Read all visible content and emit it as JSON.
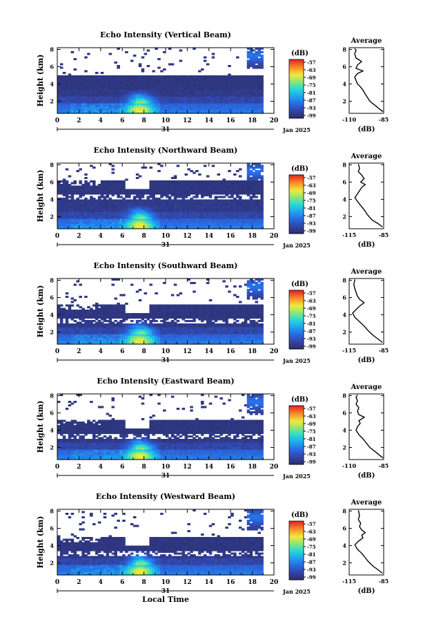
{
  "chart_data": [
    {
      "type": "heatmap",
      "title": "Echo Intensity (Vertical Beam)",
      "ylabel": "Height (km)",
      "xticks": [
        "0",
        "2",
        "4",
        "6",
        "8",
        "10",
        "12",
        "14",
        "16",
        "18",
        "20"
      ],
      "yticks": [
        "2",
        "4",
        "6",
        "8"
      ],
      "xlim": [
        0,
        20
      ],
      "ylim": [
        0.6,
        8.2
      ],
      "day_label": "31",
      "date_label": "Jan 2025",
      "colorbar": {
        "unit": "(dB)",
        "ticks": [
          "-57",
          "-63",
          "-69",
          "-75",
          "-81",
          "-87",
          "-93",
          "-99"
        ],
        "range": [
          -99,
          -57
        ]
      },
      "profile": {
        "title": "Average",
        "xlabel": "(dB)",
        "xticks": [
          "-110",
          "-85"
        ],
        "xlim": [
          -110,
          -85
        ],
        "yticks": [
          "2",
          "4",
          "6",
          "8"
        ],
        "points": [
          [
            -85.5,
            0.8
          ],
          [
            -88,
            1.1
          ],
          [
            -91,
            1.5
          ],
          [
            -95,
            2.0
          ],
          [
            -97,
            2.5
          ],
          [
            -99,
            3.0
          ],
          [
            -100,
            3.3
          ],
          [
            -102,
            3.7
          ],
          [
            -104,
            4.0
          ],
          [
            -105,
            4.4
          ],
          [
            -106,
            4.8
          ],
          [
            -104,
            5.2
          ],
          [
            -100,
            5.5
          ],
          [
            -105,
            5.8
          ],
          [
            -104,
            6.2
          ],
          [
            -101,
            6.6
          ],
          [
            -105,
            7.0
          ],
          [
            -106,
            7.5
          ],
          [
            -105,
            7.9
          ],
          [
            -106,
            8.1
          ]
        ]
      }
    },
    {
      "type": "heatmap",
      "title": "Echo Intensity (Northward Beam)",
      "ylabel": "Height (km)",
      "xticks": [
        "0",
        "2",
        "4",
        "6",
        "8",
        "10",
        "12",
        "14",
        "16",
        "18",
        "20"
      ],
      "yticks": [
        "2",
        "4",
        "6",
        "8"
      ],
      "xlim": [
        0,
        20
      ],
      "ylim": [
        0.6,
        8.2
      ],
      "day_label": "31",
      "date_label": "Jan 2025",
      "colorbar": {
        "unit": "(dB)",
        "ticks": [
          "-57",
          "-63",
          "-69",
          "-75",
          "-81",
          "-87",
          "-93",
          "-99"
        ],
        "range": [
          -99,
          -57
        ]
      },
      "profile": {
        "title": "Average",
        "xlabel": "(dB)",
        "xticks": [
          "-115",
          "-85"
        ],
        "xlim": [
          -115,
          -85
        ],
        "yticks": [
          "2",
          "4",
          "6",
          "8"
        ],
        "points": [
          [
            -86,
            0.8
          ],
          [
            -90,
            1.2
          ],
          [
            -95,
            1.6
          ],
          [
            -99,
            2.2
          ],
          [
            -102,
            2.8
          ],
          [
            -105,
            3.3
          ],
          [
            -108,
            3.8
          ],
          [
            -110,
            4.2
          ],
          [
            -108,
            4.6
          ],
          [
            -106,
            5.0
          ],
          [
            -104,
            5.4
          ],
          [
            -101,
            5.7
          ],
          [
            -105,
            6.0
          ],
          [
            -102,
            6.4
          ],
          [
            -104,
            6.8
          ],
          [
            -107,
            7.2
          ],
          [
            -106,
            7.6
          ],
          [
            -107,
            8.1
          ]
        ]
      }
    },
    {
      "type": "heatmap",
      "title": "Echo Intensity (Southward Beam)",
      "ylabel": "Height (km)",
      "xticks": [
        "0",
        "2",
        "4",
        "6",
        "8",
        "10",
        "12",
        "14",
        "16",
        "18",
        "20"
      ],
      "yticks": [
        "2",
        "4",
        "6",
        "8"
      ],
      "xlim": [
        0,
        20
      ],
      "ylim": [
        0.6,
        8.2
      ],
      "day_label": "31",
      "date_label": "Jan 2025",
      "colorbar": {
        "unit": "(dB)",
        "ticks": [
          "-57",
          "-63",
          "-69",
          "-75",
          "-81",
          "-87",
          "-93",
          "-99"
        ],
        "range": [
          -99,
          -57
        ]
      },
      "profile": {
        "title": "Average",
        "xlabel": "(dB)",
        "xticks": [
          "-115",
          "-85"
        ],
        "xlim": [
          -115,
          -85
        ],
        "yticks": [
          "2",
          "4",
          "6",
          "8"
        ],
        "points": [
          [
            -86,
            0.8
          ],
          [
            -90,
            1.2
          ],
          [
            -94,
            1.6
          ],
          [
            -98,
            2.1
          ],
          [
            -102,
            2.7
          ],
          [
            -106,
            3.2
          ],
          [
            -110,
            3.7
          ],
          [
            -112,
            4.2
          ],
          [
            -109,
            4.6
          ],
          [
            -106,
            5.0
          ],
          [
            -102,
            5.4
          ],
          [
            -106,
            5.8
          ],
          [
            -108,
            6.2
          ],
          [
            -109,
            6.6
          ],
          [
            -110,
            7.0
          ],
          [
            -111,
            7.5
          ],
          [
            -110,
            8.1
          ]
        ]
      }
    },
    {
      "type": "heatmap",
      "title": "Echo Intensity (Eastward Beam)",
      "ylabel": "Height (km)",
      "xticks": [
        "0",
        "2",
        "4",
        "6",
        "8",
        "10",
        "12",
        "14",
        "16",
        "18",
        "20"
      ],
      "yticks": [
        "2",
        "4",
        "6",
        "8"
      ],
      "xlim": [
        0,
        20
      ],
      "ylim": [
        0.6,
        8.2
      ],
      "day_label": "31",
      "date_label": "Jan 2025",
      "colorbar": {
        "unit": "(dB)",
        "ticks": [
          "-57",
          "-63",
          "-69",
          "-75",
          "-81",
          "-87",
          "-93",
          "-99"
        ],
        "range": [
          -99,
          -57
        ]
      },
      "profile": {
        "title": "Average",
        "xlabel": "(dB)",
        "xticks": [
          "-110",
          "-85"
        ],
        "xlim": [
          -110,
          -85
        ],
        "yticks": [
          "2",
          "4",
          "6",
          "8"
        ],
        "points": [
          [
            -85.5,
            0.8
          ],
          [
            -88,
            1.1
          ],
          [
            -91,
            1.5
          ],
          [
            -95,
            2.0
          ],
          [
            -98,
            2.6
          ],
          [
            -100,
            3.0
          ],
          [
            -103,
            3.5
          ],
          [
            -105,
            4.0
          ],
          [
            -104,
            4.4
          ],
          [
            -102,
            4.8
          ],
          [
            -103,
            5.1
          ],
          [
            -99,
            5.5
          ],
          [
            -103,
            5.8
          ],
          [
            -104,
            6.2
          ],
          [
            -103,
            6.6
          ],
          [
            -105,
            7.0
          ],
          [
            -104,
            7.4
          ],
          [
            -105,
            7.8
          ],
          [
            -104,
            8.1
          ]
        ]
      }
    },
    {
      "type": "heatmap",
      "title": "Echo Intensity (Westward Beam)",
      "ylabel": "Height (km)",
      "xticks": [
        "0",
        "2",
        "4",
        "6",
        "8",
        "10",
        "12",
        "14",
        "16",
        "18",
        "20"
      ],
      "yticks": [
        "2",
        "4",
        "6",
        "8"
      ],
      "xlim": [
        0,
        20
      ],
      "ylim": [
        0.6,
        8.2
      ],
      "day_label": "31",
      "date_label": "Jan 2025",
      "xlabel": "Local Time",
      "colorbar": {
        "unit": "(dB)",
        "ticks": [
          "-57",
          "-63",
          "-69",
          "-75",
          "-81",
          "-87",
          "-93",
          "-99"
        ],
        "range": [
          -99,
          -57
        ]
      },
      "profile": {
        "title": "Average",
        "xlabel": "(dB)",
        "xticks": [
          "-115",
          "-85"
        ],
        "xlim": [
          -115,
          -85
        ],
        "yticks": [
          "2",
          "4",
          "6",
          "8"
        ],
        "points": [
          [
            -86,
            0.8
          ],
          [
            -90,
            1.2
          ],
          [
            -94,
            1.6
          ],
          [
            -98,
            2.1
          ],
          [
            -101,
            2.6
          ],
          [
            -104,
            3.1
          ],
          [
            -108,
            3.6
          ],
          [
            -110,
            4.1
          ],
          [
            -107,
            4.5
          ],
          [
            -103,
            4.9
          ],
          [
            -104,
            5.2
          ],
          [
            -101,
            5.5
          ],
          [
            -104,
            5.8
          ],
          [
            -106,
            6.2
          ],
          [
            -105,
            6.6
          ],
          [
            -107,
            7.0
          ],
          [
            -106,
            7.5
          ],
          [
            -107,
            8.1
          ]
        ]
      }
    }
  ]
}
